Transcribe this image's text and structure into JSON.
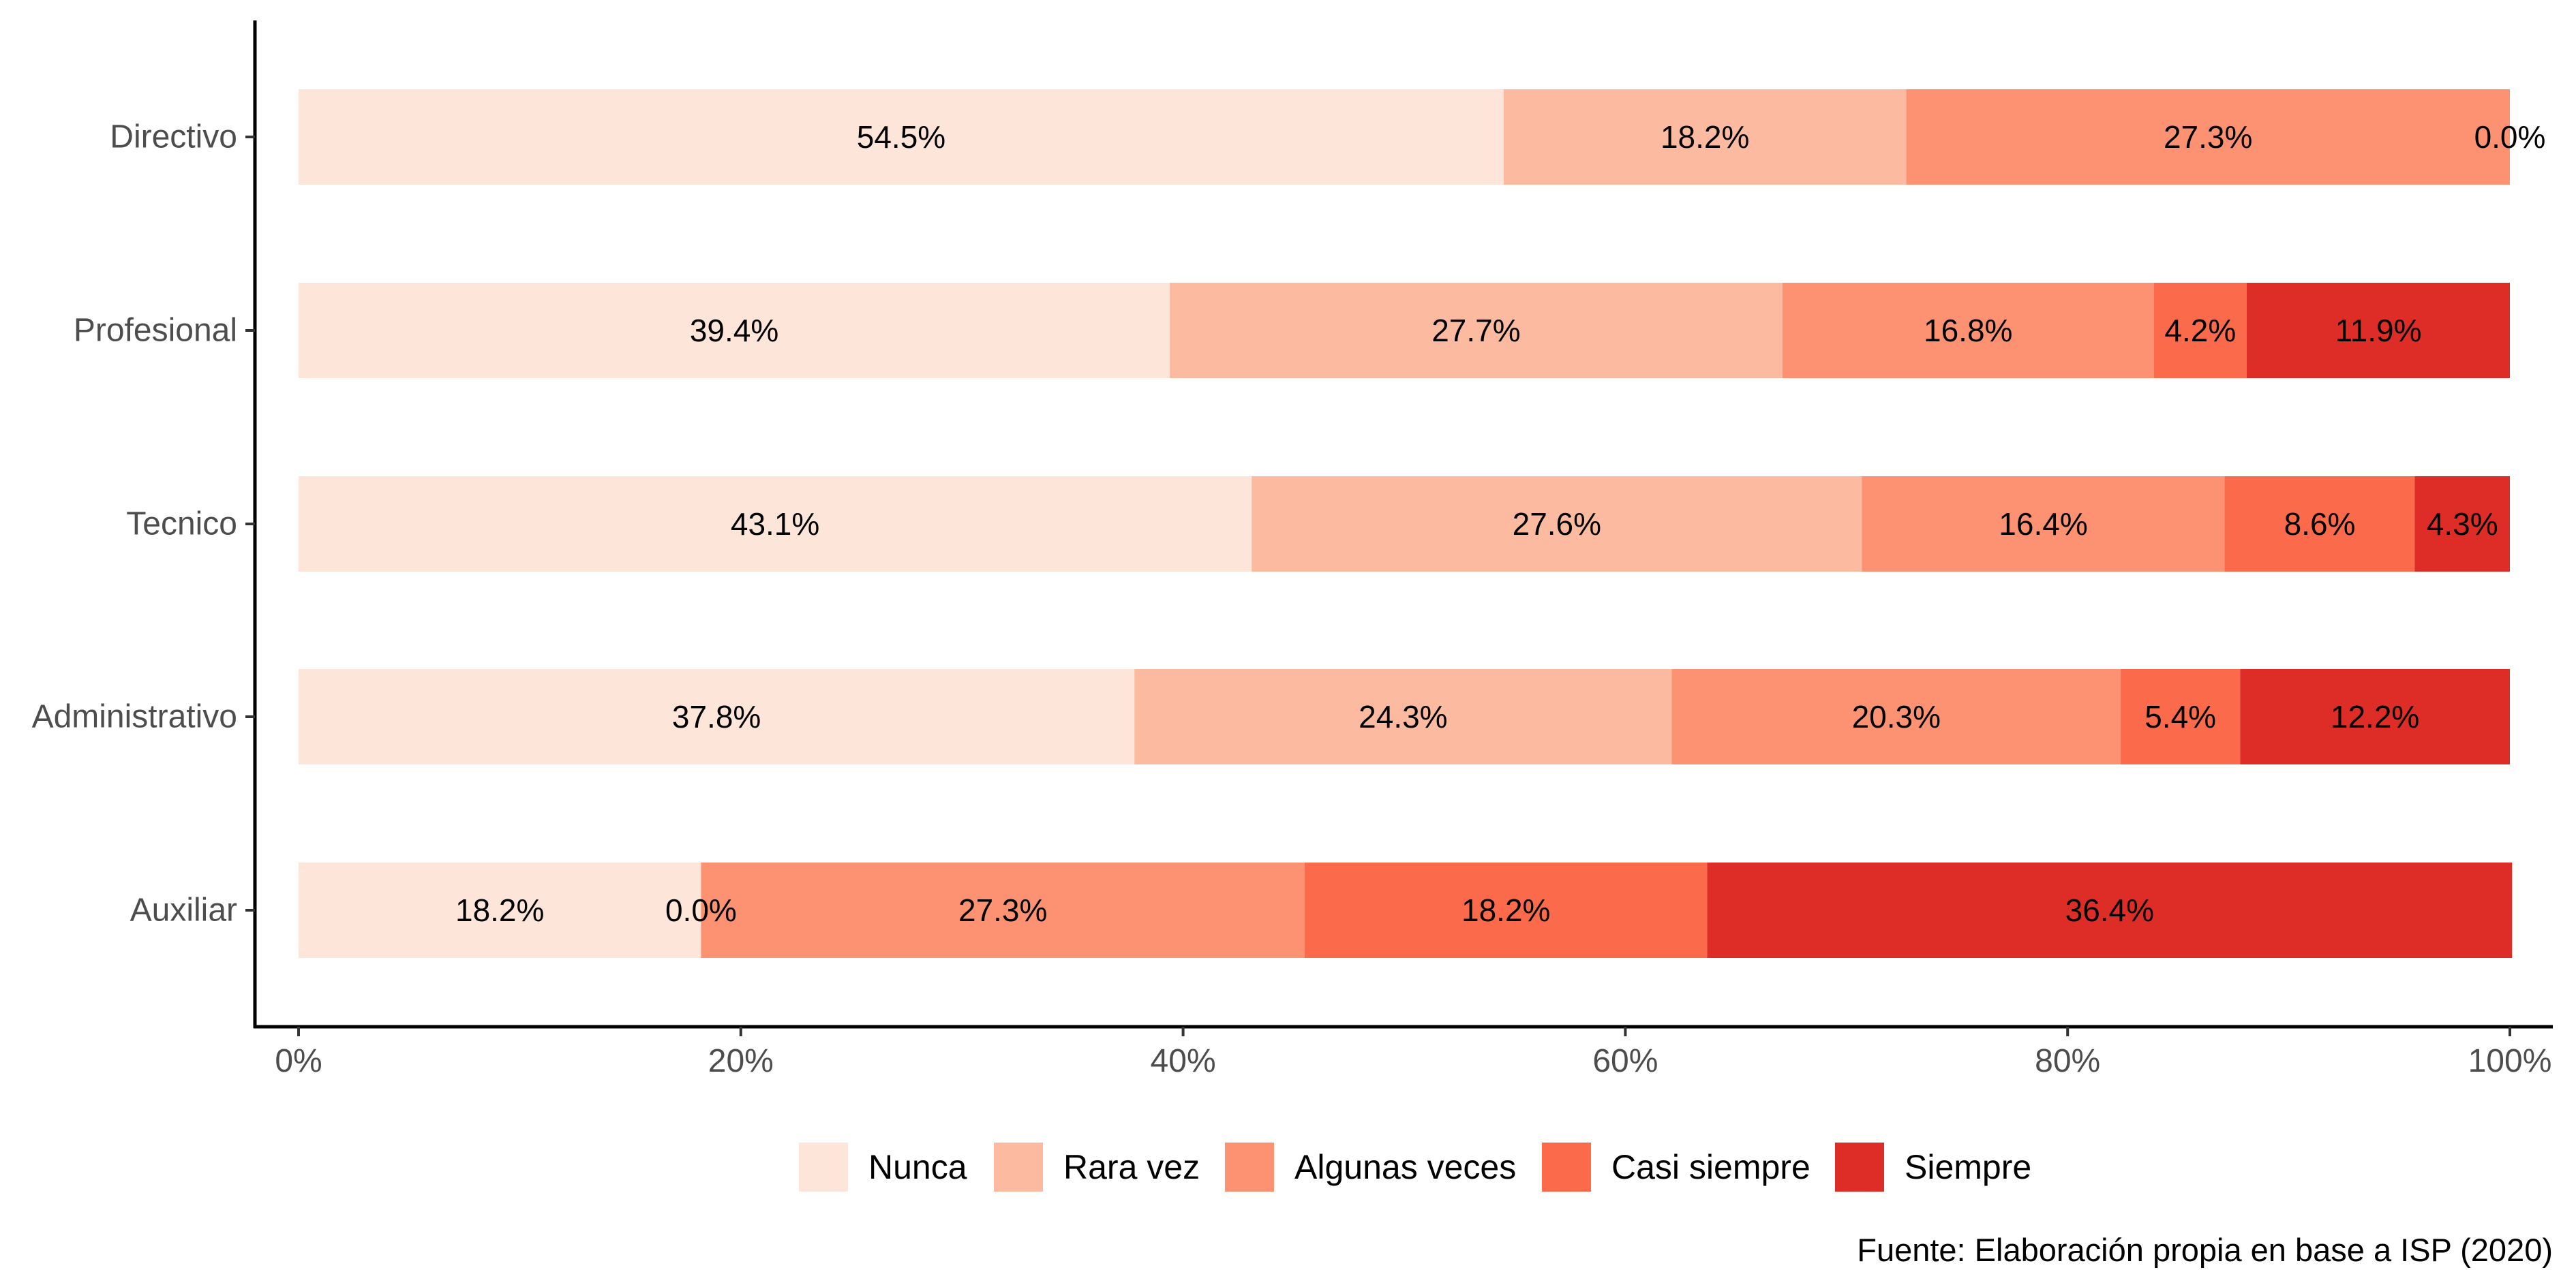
{
  "chart_data": {
    "type": "bar",
    "orientation": "horizontal",
    "stacked": true,
    "title": "",
    "xlabel": "",
    "ylabel": "",
    "categories": [
      "Directivo",
      "Profesional",
      "Tecnico",
      "Administrativo",
      "Auxiliar"
    ],
    "series": [
      {
        "name": "Nunca",
        "color": "#FEE5D9",
        "values": [
          54.5,
          39.4,
          43.1,
          37.8,
          18.2
        ],
        "labels": [
          "54.5%",
          "39.4%",
          "43.1%",
          "37.8%",
          "18.2%"
        ]
      },
      {
        "name": "Rara vez",
        "color": "#FCBBA1",
        "values": [
          18.2,
          27.7,
          27.6,
          24.3,
          0.0
        ],
        "labels": [
          "18.2%",
          "27.7%",
          "27.6%",
          "24.3%",
          "0.0%"
        ]
      },
      {
        "name": "Algunas veces",
        "color": "#FC9272",
        "values": [
          27.3,
          16.8,
          16.4,
          20.3,
          27.3
        ],
        "labels": [
          "27.3%",
          "16.8%",
          "16.4%",
          "20.3%",
          "27.3%"
        ]
      },
      {
        "name": "Casi siempre",
        "color": "#FB6A4A",
        "values": [
          0.0,
          4.2,
          8.6,
          5.4,
          18.2
        ],
        "labels": [
          "0.0%",
          "4.2%",
          "8.6%",
          "5.4%",
          "18.2%"
        ]
      },
      {
        "name": "Siempre",
        "color": "#DE2D26",
        "values": [
          0.0,
          11.9,
          4.3,
          12.2,
          36.4
        ],
        "labels": [
          "",
          "11.9%",
          "4.3%",
          "12.2%",
          "36.4%"
        ]
      }
    ],
    "xlim": [
      0,
      100
    ],
    "x_ticks": [
      0,
      20,
      40,
      60,
      80,
      100
    ],
    "x_tick_labels": [
      "0%",
      "20%",
      "40%",
      "60%",
      "80%",
      "100%"
    ],
    "grid": false,
    "legend_position": "bottom",
    "caption": "Fuente: Elaboración propia en base a ISP (2020)"
  }
}
